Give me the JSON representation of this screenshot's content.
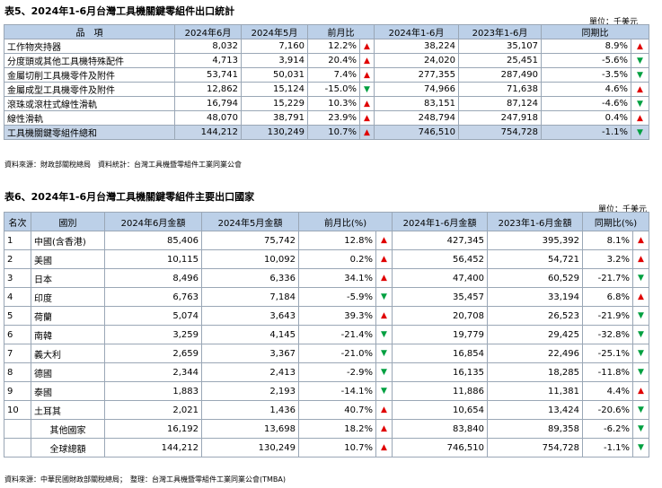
{
  "table5": {
    "title": "表5、2024年1-6月台灣工具機關鍵零組件出口統計",
    "unit": "單位：千美元",
    "headers": [
      "品　項",
      "2024年6月",
      "2024年5月",
      "前月比",
      "2024年1-6月",
      "2023年1-6月",
      "同期比"
    ],
    "rows": [
      {
        "item": "工作物夾持器",
        "jun": "8,032",
        "may": "7,160",
        "mom": "12.2%",
        "mom_dir": "up",
        "h1_2024": "38,224",
        "h1_2023": "35,107",
        "yoy": "8.9%",
        "yoy_dir": "up"
      },
      {
        "item": "分度頭或其他工具機特殊配件",
        "jun": "4,713",
        "may": "3,914",
        "mom": "20.4%",
        "mom_dir": "up",
        "h1_2024": "24,020",
        "h1_2023": "25,451",
        "yoy": "-5.6%",
        "yoy_dir": "down"
      },
      {
        "item": "金屬切削工具機零件及附件",
        "jun": "53,741",
        "may": "50,031",
        "mom": "7.4%",
        "mom_dir": "up",
        "h1_2024": "277,355",
        "h1_2023": "287,490",
        "yoy": "-3.5%",
        "yoy_dir": "down"
      },
      {
        "item": "金屬成型工具機零件及附件",
        "jun": "12,862",
        "may": "15,124",
        "mom": "-15.0%",
        "mom_dir": "down",
        "h1_2024": "74,966",
        "h1_2023": "71,638",
        "yoy": "4.6%",
        "yoy_dir": "up"
      },
      {
        "item": "滾珠或滾柱式線性滑軌",
        "jun": "16,794",
        "may": "15,229",
        "mom": "10.3%",
        "mom_dir": "up",
        "h1_2024": "83,151",
        "h1_2023": "87,124",
        "yoy": "-4.6%",
        "yoy_dir": "down"
      },
      {
        "item": "線性滑軌",
        "jun": "48,070",
        "may": "38,791",
        "mom": "23.9%",
        "mom_dir": "up",
        "h1_2024": "248,794",
        "h1_2023": "247,918",
        "yoy": "0.4%",
        "yoy_dir": "up"
      }
    ],
    "total": {
      "item": "工具機關鍵零組件總和",
      "jun": "144,212",
      "may": "130,249",
      "mom": "10.7%",
      "mom_dir": "up",
      "h1_2024": "746,510",
      "h1_2023": "754,728",
      "yoy": "-1.1%",
      "yoy_dir": "down"
    },
    "note": "資料來源：財政部關稅總局　資料統計：台灣工具機暨零組件工業同業公會"
  },
  "table6": {
    "title": "表6、2024年1-6月台灣工具機關鍵零組件主要出口國家",
    "unit": "單位：千美元",
    "headers": [
      "名次",
      "國別",
      "2024年6月金額",
      "2024年5月金額",
      "前月比(%)",
      "2024年1-6月金額",
      "2023年1-6月金額",
      "同期比(%)"
    ],
    "rows": [
      {
        "rank": "1",
        "country": "中國(含香港)",
        "jun": "85,406",
        "may": "75,742",
        "mom": "12.8%",
        "mom_dir": "up",
        "h1_2024": "427,345",
        "h1_2023": "395,392",
        "yoy": "8.1%",
        "yoy_dir": "up"
      },
      {
        "rank": "2",
        "country": "美國",
        "jun": "10,115",
        "may": "10,092",
        "mom": "0.2%",
        "mom_dir": "up",
        "h1_2024": "56,452",
        "h1_2023": "54,721",
        "yoy": "3.2%",
        "yoy_dir": "up"
      },
      {
        "rank": "3",
        "country": "日本",
        "jun": "8,496",
        "may": "6,336",
        "mom": "34.1%",
        "mom_dir": "up",
        "h1_2024": "47,400",
        "h1_2023": "60,529",
        "yoy": "-21.7%",
        "yoy_dir": "down"
      },
      {
        "rank": "4",
        "country": "印度",
        "jun": "6,763",
        "may": "7,184",
        "mom": "-5.9%",
        "mom_dir": "down",
        "h1_2024": "35,457",
        "h1_2023": "33,194",
        "yoy": "6.8%",
        "yoy_dir": "up"
      },
      {
        "rank": "5",
        "country": "荷蘭",
        "jun": "5,074",
        "may": "3,643",
        "mom": "39.3%",
        "mom_dir": "up",
        "h1_2024": "20,708",
        "h1_2023": "26,523",
        "yoy": "-21.9%",
        "yoy_dir": "down"
      },
      {
        "rank": "6",
        "country": "南韓",
        "jun": "3,259",
        "may": "4,145",
        "mom": "-21.4%",
        "mom_dir": "down",
        "h1_2024": "19,779",
        "h1_2023": "29,425",
        "yoy": "-32.8%",
        "yoy_dir": "down"
      },
      {
        "rank": "7",
        "country": "義大利",
        "jun": "2,659",
        "may": "3,367",
        "mom": "-21.0%",
        "mom_dir": "down",
        "h1_2024": "16,854",
        "h1_2023": "22,496",
        "yoy": "-25.1%",
        "yoy_dir": "down"
      },
      {
        "rank": "8",
        "country": "德國",
        "jun": "2,344",
        "may": "2,413",
        "mom": "-2.9%",
        "mom_dir": "down",
        "h1_2024": "16,135",
        "h1_2023": "18,285",
        "yoy": "-11.8%",
        "yoy_dir": "down"
      },
      {
        "rank": "9",
        "country": "泰國",
        "jun": "1,883",
        "may": "2,193",
        "mom": "-14.1%",
        "mom_dir": "down",
        "h1_2024": "11,886",
        "h1_2023": "11,381",
        "yoy": "4.4%",
        "yoy_dir": "up"
      },
      {
        "rank": "10",
        "country": "土耳其",
        "jun": "2,021",
        "may": "1,436",
        "mom": "40.7%",
        "mom_dir": "up",
        "h1_2024": "10,654",
        "h1_2023": "13,424",
        "yoy": "-20.6%",
        "yoy_dir": "down"
      },
      {
        "rank": "",
        "country": "其他國家",
        "jun": "16,192",
        "may": "13,698",
        "mom": "18.2%",
        "mom_dir": "up",
        "h1_2024": "83,840",
        "h1_2023": "89,358",
        "yoy": "-6.2%",
        "yoy_dir": "down"
      },
      {
        "rank": "",
        "country": "全球總額",
        "jun": "144,212",
        "may": "130,249",
        "mom": "10.7%",
        "mom_dir": "up",
        "h1_2024": "746,510",
        "h1_2023": "754,728",
        "yoy": "-1.1%",
        "yoy_dir": "down"
      }
    ],
    "note": "資料來源：中華民國財政部關稅總局；　整理：台灣工具機暨零組件工業同業公會(TMBA)"
  },
  "arrows": {
    "up": "▲",
    "down": "▼"
  },
  "colors": {
    "header_bg": "#bcd0e8",
    "up": "#e00000",
    "down": "#00a040",
    "grid": "#9aa7b6"
  }
}
